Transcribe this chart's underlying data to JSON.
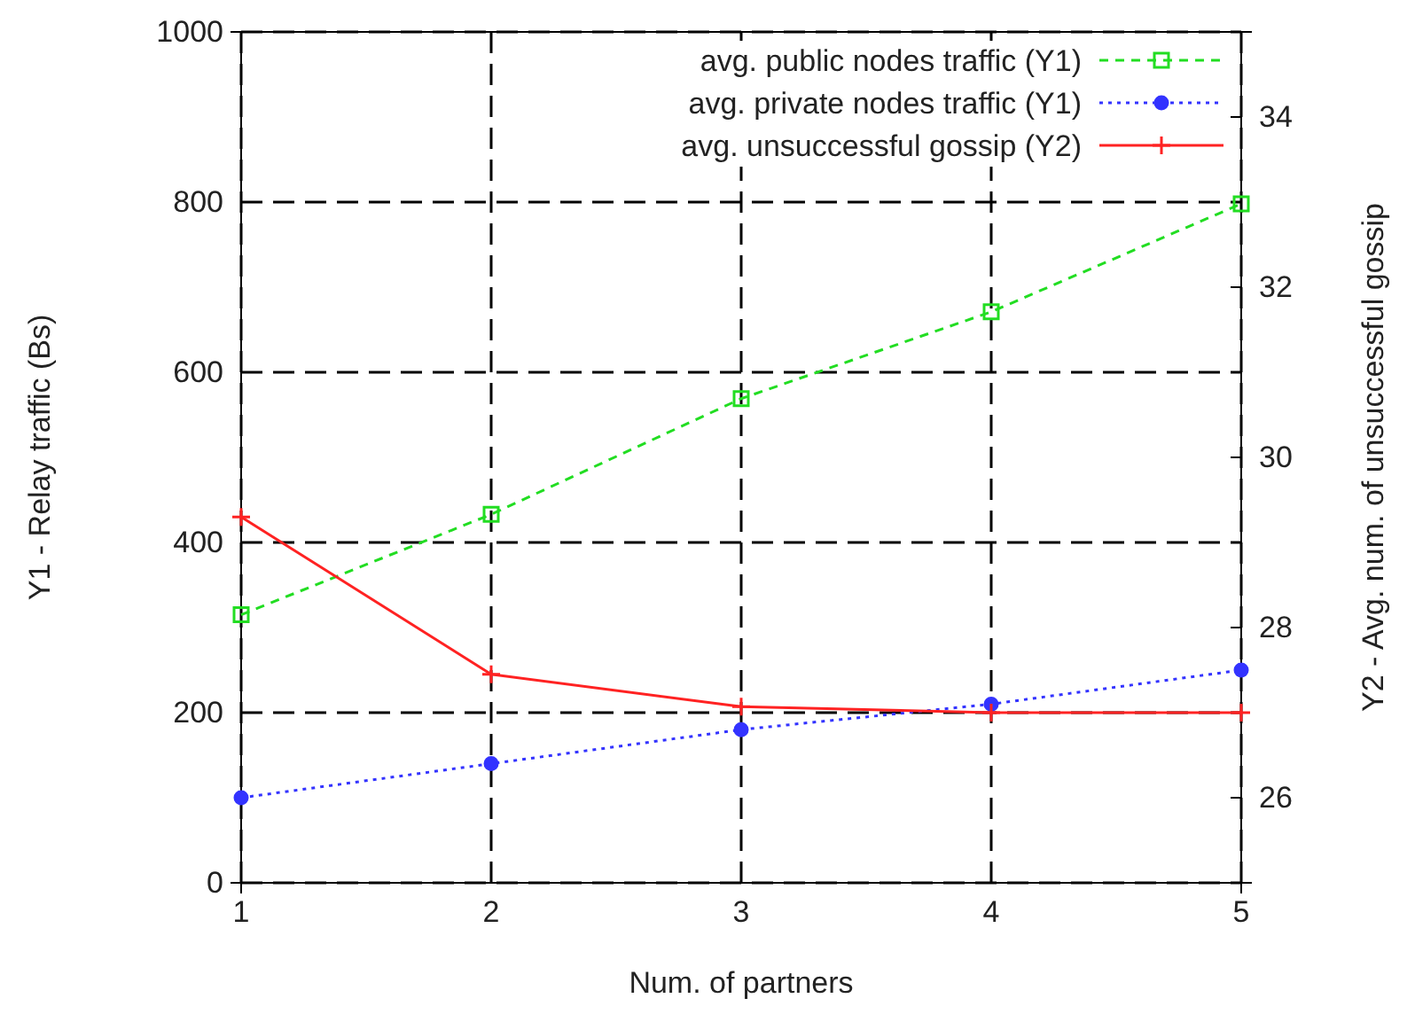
{
  "chart_data": {
    "type": "line",
    "xlabel": "Num. of partners",
    "ylabel": "Y1 - Relay traffic (Bs)",
    "y2label": "Y2 - Avg. num. of unsuccessful gossip",
    "x": [
      1,
      2,
      3,
      4,
      5
    ],
    "xlim": [
      1,
      5
    ],
    "xticks": [
      1,
      2,
      3,
      4,
      5
    ],
    "ylim": [
      0,
      1000
    ],
    "yticks": [
      0,
      200,
      400,
      600,
      800,
      1000
    ],
    "y2lim": [
      25,
      35
    ],
    "y2ticks": [
      26,
      28,
      30,
      32,
      34
    ],
    "grid": true,
    "legend": "top right",
    "series": [
      {
        "name": "avg. public nodes traffic (Y1)",
        "color": "#22dd22",
        "values": [
          315,
          433,
          569,
          671,
          798
        ],
        "marker": "square",
        "line_style": "dashed"
      },
      {
        "name": "avg. private nodes traffic (Y1)",
        "color": "#3333ff",
        "values": [
          100,
          140,
          180,
          210,
          250
        ],
        "marker": "circle",
        "line_style": "dotted"
      },
      {
        "name": "avg. unsuccessful gossip (Y2)",
        "color": "#ff2222",
        "values": [
          29.3,
          27.45,
          27.07,
          27.0,
          27.0
        ],
        "marker": "cross",
        "line_style": "solid",
        "axis": "y2"
      }
    ]
  }
}
